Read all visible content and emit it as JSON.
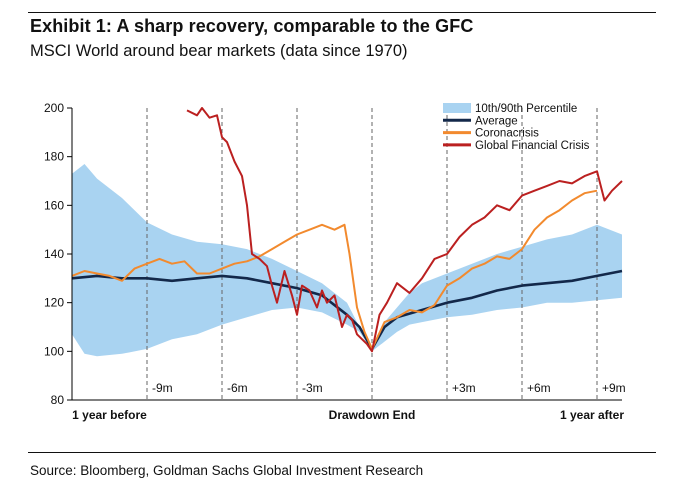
{
  "header": {
    "title": "Exhibit 1: A sharp recovery, comparable to the GFC",
    "subtitle": "MSCI World around bear markets (data since 1970)"
  },
  "footer": {
    "source": "Source: Bloomberg, Goldman Sachs Global Investment Research"
  },
  "colors": {
    "band": "#a9d3f1",
    "average": "#13284a",
    "coronacrisis": "#f28a2e",
    "gfc": "#bb2020",
    "axis": "#000000",
    "gridline": "#666666"
  },
  "chart_data": {
    "type": "line",
    "title": "MSCI World around bear markets (data since 1970)",
    "ylim": [
      80,
      200
    ],
    "yticks": [
      80,
      100,
      120,
      140,
      160,
      180,
      200
    ],
    "xlim": [
      -12,
      10
    ],
    "x_unit": "months relative to drawdown end",
    "vertical_markers": [
      {
        "x": -9,
        "label": "-9m"
      },
      {
        "x": -6,
        "label": "-6m"
      },
      {
        "x": -3,
        "label": "-3m"
      },
      {
        "x": 0,
        "label": ""
      },
      {
        "x": 3,
        "label": "+3m"
      },
      {
        "x": 6,
        "label": "+6m"
      },
      {
        "x": 9,
        "label": "+9m"
      }
    ],
    "x_category_labels": [
      {
        "x": -10.5,
        "label": "1 year before"
      },
      {
        "x": 0,
        "label": "Drawdown End"
      },
      {
        "x": 8.8,
        "label": "1 year after"
      }
    ],
    "legend": {
      "position": "top-right",
      "entries": [
        {
          "label": "10th/90th Percentile",
          "style": "band",
          "color": "#a9d3f1"
        },
        {
          "label": "Average",
          "style": "line",
          "color": "#13284a"
        },
        {
          "label": "Coronacrisis",
          "style": "line",
          "color": "#f28a2e"
        },
        {
          "label": "Global Financial Crisis",
          "style": "line",
          "color": "#bb2020"
        }
      ]
    },
    "band": {
      "name": "10th/90th Percentile",
      "x": [
        -12,
        -11.5,
        -11,
        -10,
        -9,
        -8,
        -7,
        -6,
        -5,
        -4,
        -3,
        -2,
        -1,
        -0.5,
        0,
        0.5,
        1,
        1.5,
        2,
        3,
        4,
        5,
        6,
        7,
        8,
        9,
        10
      ],
      "lower": [
        107,
        99,
        98,
        99,
        101,
        105,
        107,
        111,
        114,
        117,
        118,
        116,
        111,
        108,
        100,
        104,
        108,
        111,
        112,
        114,
        115,
        117,
        118,
        120,
        120,
        121,
        122
      ],
      "upper": [
        173,
        177,
        171,
        163,
        153,
        148,
        145,
        144,
        142,
        138,
        133,
        128,
        120,
        110,
        100,
        112,
        118,
        124,
        128,
        132,
        136,
        140,
        143,
        146,
        148,
        152,
        148
      ]
    },
    "series": [
      {
        "name": "Average",
        "x": [
          -12,
          -11,
          -10,
          -9,
          -8,
          -7,
          -6,
          -5,
          -4,
          -3,
          -2,
          -1,
          -0.5,
          0,
          0.5,
          1,
          2,
          3,
          4,
          5,
          6,
          7,
          8,
          9,
          10
        ],
        "values": [
          130,
          131,
          130,
          130,
          129,
          130,
          131,
          130,
          128,
          126,
          123,
          115,
          110,
          101,
          110,
          114,
          117,
          120,
          122,
          125,
          127,
          128,
          129,
          131,
          133
        ]
      },
      {
        "name": "Coronacrisis",
        "x": [
          -12,
          -11.5,
          -11,
          -10.5,
          -10,
          -9.5,
          -9,
          -8.5,
          -8,
          -7.5,
          -7,
          -6.5,
          -6,
          -5.5,
          -5,
          -4.5,
          -4,
          -3.5,
          -3,
          -2.5,
          -2,
          -1.5,
          -1.1,
          -0.9,
          -0.6,
          -0.3,
          0,
          0.5,
          1,
          1.5,
          2,
          2.5,
          3,
          3.5,
          4,
          4.5,
          5,
          5.5,
          6,
          6.5,
          7,
          7.5,
          8,
          8.5,
          9
        ],
        "values": [
          131,
          133,
          132,
          131,
          129,
          134,
          136,
          138,
          136,
          137,
          132,
          132,
          134,
          136,
          137,
          139,
          142,
          145,
          148,
          150,
          152,
          150,
          152,
          140,
          118,
          108,
          101,
          112,
          114,
          117,
          116,
          119,
          127,
          130,
          134,
          136,
          139,
          138,
          142,
          150,
          155,
          158,
          162,
          165,
          166
        ]
      },
      {
        "name": "Global Financial Crisis",
        "x": [
          -7.4,
          -7,
          -6.8,
          -6.5,
          -6.2,
          -6,
          -5.8,
          -5.5,
          -5.2,
          -5,
          -4.8,
          -4.5,
          -4.2,
          -4,
          -3.8,
          -3.5,
          -3.2,
          -3,
          -2.8,
          -2.5,
          -2.2,
          -2,
          -1.8,
          -1.5,
          -1.2,
          -1,
          -0.8,
          -0.6,
          -0.4,
          -0.2,
          0,
          0.3,
          0.6,
          1,
          1.5,
          2,
          2.5,
          3,
          3.5,
          4,
          4.5,
          5,
          5.5,
          6,
          6.5,
          7,
          7.5,
          8,
          8.5,
          9,
          9.3,
          9.6,
          10
        ],
        "values": [
          199,
          197,
          200,
          196,
          197,
          188,
          186,
          178,
          172,
          160,
          140,
          138,
          135,
          127,
          120,
          133,
          123,
          115,
          127,
          125,
          118,
          125,
          120,
          123,
          110,
          115,
          113,
          107,
          105,
          103,
          100,
          115,
          120,
          128,
          124,
          130,
          138,
          140,
          147,
          152,
          155,
          160,
          158,
          164,
          166,
          168,
          170,
          169,
          172,
          174,
          162,
          166,
          170
        ]
      }
    ]
  }
}
